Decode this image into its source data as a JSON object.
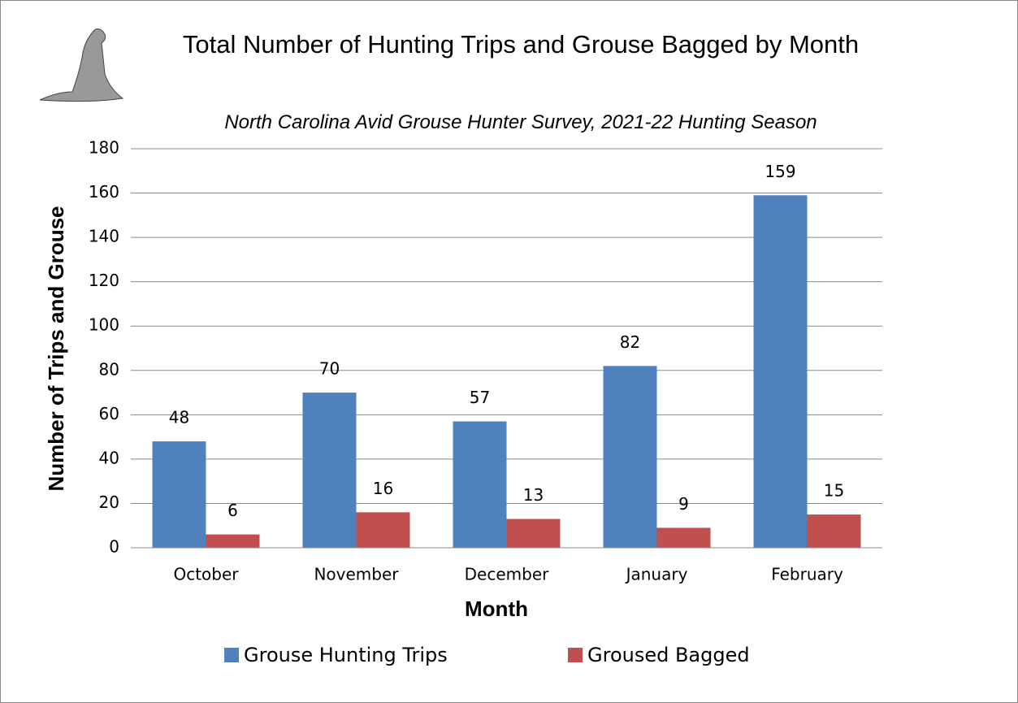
{
  "chart_data": {
    "type": "bar",
    "title": "Total Number of Hunting Trips and Grouse Bagged by Month",
    "subtitle": "North Carolina Avid Grouse Hunter Survey, 2021-22 Hunting Season",
    "x_label": "Month",
    "y_label": "Number of Trips and Grouse",
    "categories": [
      "October",
      "November",
      "December",
      "January",
      "February"
    ],
    "series": [
      {
        "name": "Grouse Hunting Trips",
        "color": "#4f81bd",
        "values": [
          48,
          70,
          57,
          82,
          159
        ]
      },
      {
        "name": "Groused Bagged",
        "color": "#c0504d",
        "values": [
          6,
          16,
          13,
          9,
          15
        ]
      }
    ],
    "ylim": [
      0,
      180
    ],
    "yticks": [
      0,
      20,
      40,
      60,
      80,
      100,
      120,
      140,
      160,
      180
    ],
    "grid": true,
    "legend": "bottom"
  }
}
